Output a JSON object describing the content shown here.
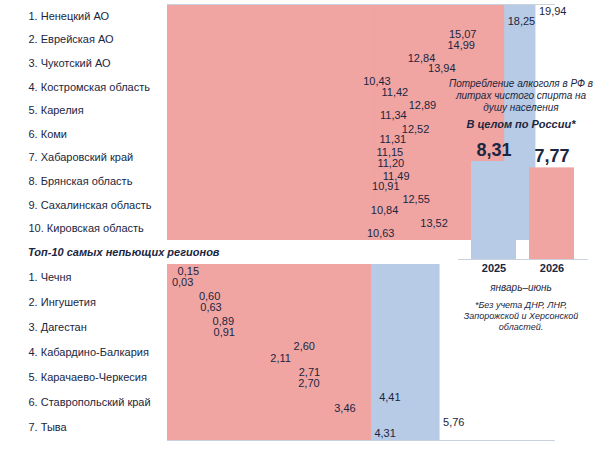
{
  "chart_data": [
    {
      "type": "bar",
      "orientation": "horizontal",
      "data_labels": true,
      "tick_labels": "y",
      "categories": [
        "1. Ненецкий АО",
        "2. Еврейская АО",
        "3. Чукотский АО",
        "4. Костромская область",
        "5. Карелия",
        "6. Коми",
        "7. Хабаровский край",
        "8. Брянская область",
        "9. Сахалинская область",
        "10. Кировская область"
      ],
      "xlim": [
        0,
        21
      ],
      "series": [
        {
          "name": "2025",
          "color": "#b7cbe6",
          "values": [
            19.94,
            15.07,
            12.84,
            10.43,
            12.89,
            12.52,
            11.15,
            11.49,
            12.55,
            13.52
          ],
          "value_labels": [
            "19,94",
            "15,07",
            "12,84",
            "10,43",
            "12,89",
            "12,52",
            "11,15",
            "11,49",
            "12,55",
            "13,52"
          ]
        },
        {
          "name": "2026",
          "color": "#f0a5a3",
          "values": [
            18.25,
            14.99,
            13.94,
            11.42,
            11.34,
            11.31,
            11.2,
            10.91,
            10.84,
            10.63
          ],
          "value_labels": [
            "18,25",
            "14,99",
            "13,94",
            "11,42",
            "11,34",
            "11,31",
            "11,20",
            "10,91",
            "10,84",
            "10,63"
          ]
        }
      ]
    },
    {
      "type": "bar",
      "orientation": "horizontal",
      "data_labels": true,
      "tick_labels": "y",
      "title": "Топ-10 самых непьющих регионов",
      "categories": [
        "1. Чечня",
        "2. Ингушетия",
        "3. Дагестан",
        "4. Кабардино-Балкария",
        "5. Карачаево-Черкесия",
        "6. Ставропольский край",
        "7. Тыва"
      ],
      "xlim": [
        0,
        8.2
      ],
      "series": [
        {
          "name": "2025",
          "color": "#b7cbe6",
          "values": [
            0.15,
            0.6,
            0.89,
            2.6,
            2.71,
            4.41,
            5.76
          ],
          "value_labels": [
            "0,15",
            "0,60",
            "0,89",
            "2,60",
            "2,71",
            "4,41",
            "5,76"
          ]
        },
        {
          "name": "2026",
          "color": "#f0a5a3",
          "values": [
            0.03,
            0.63,
            0.91,
            2.11,
            2.7,
            3.46,
            4.31
          ],
          "value_labels": [
            "0,03",
            "0,63",
            "0,91",
            "2,11",
            "2,70",
            "3,46",
            "4,31"
          ]
        }
      ]
    },
    {
      "type": "bar",
      "data_labels": true,
      "tick_labels": "x",
      "title": "Потребление алкоголя в РФ в литрах чистого спирта на душу населения",
      "subtitle": "В целом по России*",
      "xlabel": "январь–июнь",
      "annotations": [
        "*Без учета ДНР, ЛНР, Запорожской и Херсонской областей."
      ],
      "categories": [
        "2025",
        "2026"
      ],
      "values": [
        8.31,
        7.77
      ],
      "value_labels": [
        "8,31",
        "7,77"
      ],
      "colors": [
        "#b7cbe6",
        "#f0a5a3"
      ],
      "ylim": [
        0,
        8.31
      ]
    }
  ]
}
